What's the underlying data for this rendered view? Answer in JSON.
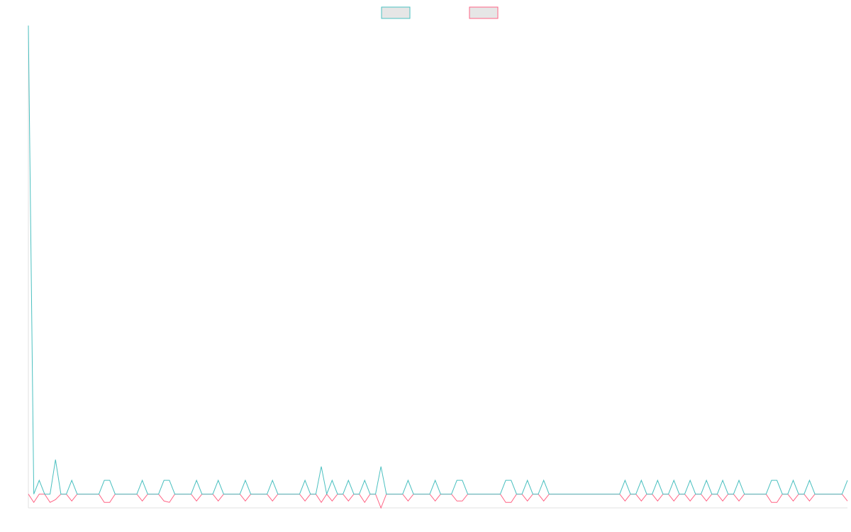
{
  "chart_data": {
    "type": "line",
    "title": "",
    "xlabel": "",
    "ylabel": "",
    "grid": false,
    "legend": {
      "placement": "top-center",
      "entries": [
        {
          "name": "",
          "color": "#4bc0c0"
        },
        {
          "name": "",
          "color": "#ff6384"
        }
      ]
    },
    "ylim": [
      -1,
      34
    ],
    "x": [
      0,
      1,
      2,
      3,
      4,
      5,
      6,
      7,
      8,
      9,
      10,
      11,
      12,
      13,
      14,
      15,
      16,
      17,
      18,
      19,
      20,
      21,
      22,
      23,
      24,
      25,
      26,
      27,
      28,
      29,
      30,
      31,
      32,
      33,
      34,
      35,
      36,
      37,
      38,
      39,
      40,
      41,
      42,
      43,
      44,
      45,
      46,
      47,
      48,
      49,
      50,
      51,
      52,
      53,
      54,
      55,
      56,
      57,
      58,
      59,
      60,
      61,
      62,
      63,
      64,
      65,
      66,
      67,
      68,
      69,
      70,
      71,
      72,
      73,
      74,
      75,
      76,
      77,
      78,
      79,
      80,
      81,
      82,
      83,
      84,
      85,
      86,
      87,
      88,
      89,
      90,
      91,
      92,
      93,
      94,
      95,
      96,
      97,
      98,
      99,
      100,
      101,
      102,
      103,
      104,
      105,
      106,
      107,
      108,
      109,
      110,
      111,
      112,
      113,
      114,
      115,
      116,
      117,
      118,
      119,
      120,
      121,
      122,
      123,
      124,
      125,
      126,
      127,
      128,
      129,
      130,
      131,
      132,
      133,
      134,
      135,
      136,
      137,
      138,
      139,
      140,
      141,
      142,
      143,
      144,
      145,
      146,
      147,
      148,
      149,
      150,
      151
    ],
    "series": [
      {
        "name": "",
        "color": "#4bc0c0",
        "values": [
          34,
          0,
          1,
          0,
          0,
          2.5,
          0,
          0,
          1,
          0,
          0,
          0,
          0,
          0,
          1,
          1,
          0,
          0,
          0,
          0,
          0,
          1,
          0,
          0,
          0,
          1,
          1,
          0,
          0,
          0,
          0,
          1,
          0,
          0,
          0,
          1,
          0,
          0,
          0,
          0,
          1,
          0,
          0,
          0,
          0,
          1,
          0,
          0,
          0,
          0,
          0,
          1,
          0,
          0,
          2,
          0,
          1,
          0,
          0,
          1,
          0,
          0,
          1,
          0,
          0,
          2,
          0,
          0,
          0,
          0,
          1,
          0,
          0,
          0,
          0,
          1,
          0,
          0,
          0,
          1,
          1,
          0,
          0,
          0,
          0,
          0,
          0,
          0,
          1,
          1,
          0,
          0,
          1,
          0,
          0,
          1,
          0,
          0,
          0,
          0,
          0,
          0,
          0,
          0,
          0,
          0,
          0,
          0,
          0,
          0,
          1,
          0,
          0,
          1,
          0,
          0,
          1,
          0,
          0,
          1,
          0,
          0,
          1,
          0,
          0,
          1,
          0,
          0,
          1,
          0,
          0,
          1,
          0,
          0,
          0,
          0,
          0,
          1,
          1,
          0,
          0,
          1,
          0,
          0,
          1,
          0,
          0,
          0,
          0,
          0,
          0,
          1
        ]
      },
      {
        "name": "",
        "color": "#ff6384",
        "values": [
          0,
          -0.6,
          0,
          0,
          -0.6,
          -0.4,
          0,
          0,
          -0.5,
          0,
          0,
          0,
          0,
          0,
          -0.6,
          -0.6,
          0,
          0,
          0,
          0,
          0,
          -0.5,
          0,
          0,
          0,
          -0.5,
          -0.6,
          0,
          0,
          0,
          0,
          -0.5,
          0,
          0,
          0,
          -0.5,
          0,
          0,
          0,
          0,
          -0.5,
          0,
          0,
          0,
          0,
          -0.5,
          0,
          0,
          0,
          0,
          0,
          -0.5,
          0,
          0,
          -0.6,
          0,
          -0.5,
          0,
          0,
          -0.5,
          0,
          0,
          -0.6,
          0,
          0,
          -1,
          0,
          0,
          0,
          0,
          -0.5,
          0,
          0,
          0,
          0,
          -0.5,
          0,
          0,
          0,
          -0.5,
          -0.5,
          0,
          0,
          0,
          0,
          0,
          0,
          0,
          -0.6,
          -0.6,
          0,
          0,
          -0.5,
          0,
          0,
          -0.5,
          0,
          0,
          0,
          0,
          0,
          0,
          0,
          0,
          0,
          0,
          0,
          0,
          0,
          0,
          -0.5,
          0,
          0,
          -0.5,
          0,
          0,
          -0.5,
          0,
          0,
          -0.5,
          0,
          0,
          -0.5,
          0,
          0,
          -0.5,
          0,
          0,
          -0.5,
          0,
          0,
          -0.5,
          0,
          0,
          0,
          0,
          0,
          -0.6,
          -0.6,
          0,
          0,
          -0.5,
          0,
          0,
          -0.5,
          0,
          0,
          0,
          0,
          0,
          0,
          -0.5
        ]
      }
    ]
  }
}
